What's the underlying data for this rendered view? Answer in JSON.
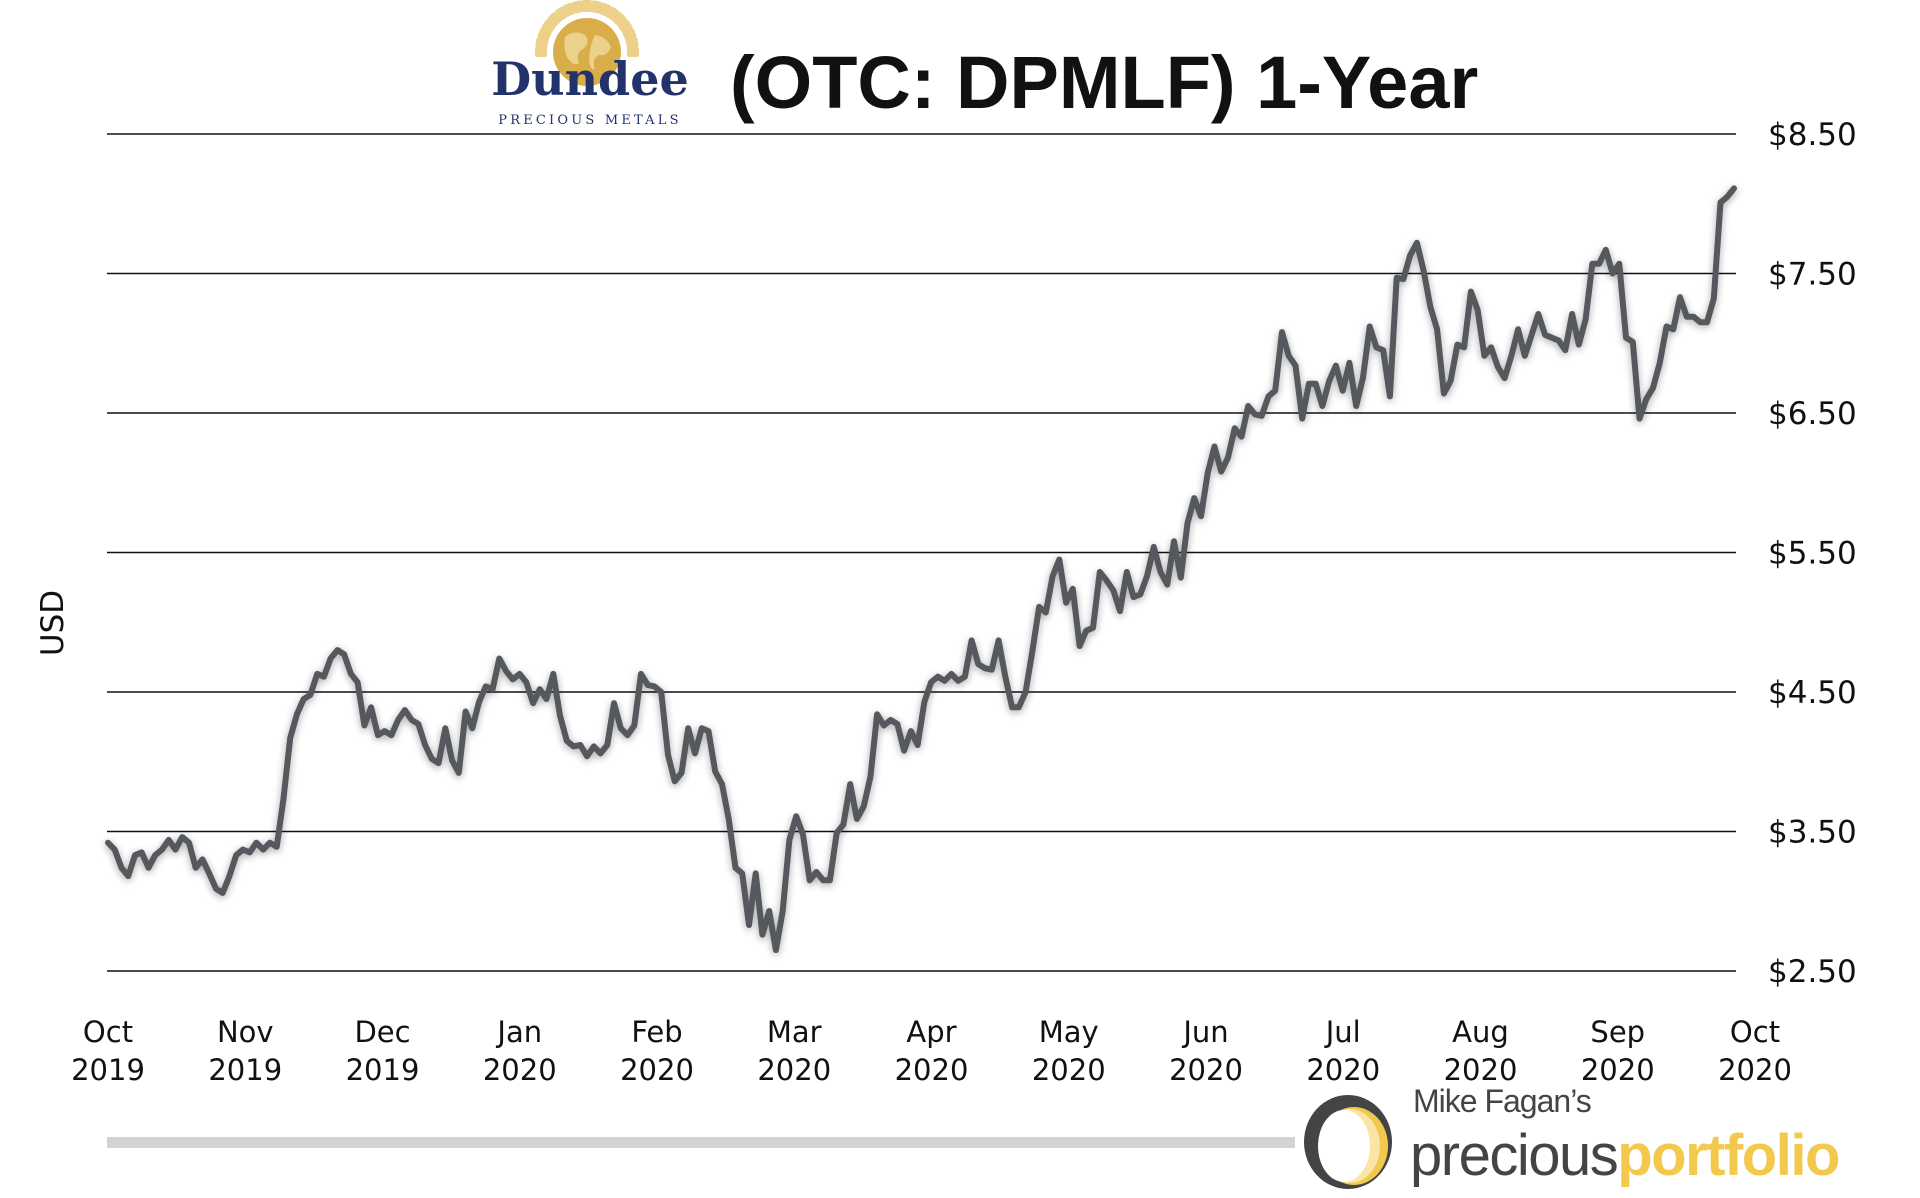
{
  "header": {
    "logo_text": "Dundee",
    "logo_subtext": "PRECIOUS METALS",
    "title": "(OTC: DPMLF) 1-Year"
  },
  "footer": {
    "brand_top": "Mike Fagan’s",
    "brand_word1": "precious",
    "brand_word2": "portfolio"
  },
  "colors": {
    "line": "#55595d",
    "logo_navy": "#22336b",
    "logo_gold": "#e2bf62",
    "brand_gold": "#f2c94c",
    "brand_gray": "#444446",
    "bar_gray": "#d3d3d3"
  },
  "chart_data": {
    "type": "line",
    "title": "(OTC: DPMLF) 1-Year",
    "ylabel": "USD",
    "xlabel": "",
    "x_range": [
      "2019-10-01",
      "2020-10-01"
    ],
    "ylim": [
      2.5,
      8.5
    ],
    "grid": "horizontal",
    "y_ticks": [
      "$8.50",
      "$7.50",
      "$6.50",
      "$5.50",
      "$4.50",
      "$3.50",
      "$2.50"
    ],
    "y_tick_values": [
      8.5,
      7.5,
      6.5,
      5.5,
      4.5,
      3.5,
      2.5
    ],
    "x_ticks": [
      {
        "month": "Oct",
        "year": "2019"
      },
      {
        "month": "Nov",
        "year": "2019"
      },
      {
        "month": "Dec",
        "year": "2019"
      },
      {
        "month": "Jan",
        "year": "2020"
      },
      {
        "month": "Feb",
        "year": "2020"
      },
      {
        "month": "Mar",
        "year": "2020"
      },
      {
        "month": "Apr",
        "year": "2020"
      },
      {
        "month": "May",
        "year": "2020"
      },
      {
        "month": "Jun",
        "year": "2020"
      },
      {
        "month": "Jul",
        "year": "2020"
      },
      {
        "month": "Aug",
        "year": "2020"
      },
      {
        "month": "Sep",
        "year": "2020"
      },
      {
        "month": "Oct",
        "year": "2020"
      }
    ],
    "series": [
      {
        "values": [
          3.42,
          3.37,
          3.24,
          3.18,
          3.33,
          3.35,
          3.24,
          3.33,
          3.37,
          3.44,
          3.37,
          3.46,
          3.42,
          3.24,
          3.3,
          3.2,
          3.09,
          3.06,
          3.18,
          3.33,
          3.37,
          3.35,
          3.42,
          3.37,
          3.42,
          3.39,
          3.73,
          4.17,
          4.34,
          4.45,
          4.48,
          4.63,
          4.61,
          4.74,
          4.8,
          4.77,
          4.63,
          4.57,
          4.26,
          4.39,
          4.19,
          4.22,
          4.19,
          4.3,
          4.37,
          4.3,
          4.27,
          4.12,
          4.02,
          3.99,
          4.24,
          4.01,
          3.92,
          4.36,
          4.24,
          4.43,
          4.54,
          4.52,
          4.74,
          4.65,
          4.59,
          4.63,
          4.57,
          4.42,
          4.52,
          4.45,
          4.63,
          4.33,
          4.15,
          4.11,
          4.12,
          4.04,
          4.11,
          4.06,
          4.12,
          4.42,
          4.24,
          4.19,
          4.26,
          4.63,
          4.55,
          4.54,
          4.5,
          4.05,
          3.86,
          3.92,
          4.24,
          4.06,
          4.24,
          4.22,
          3.93,
          3.84,
          3.59,
          3.24,
          3.2,
          2.83,
          3.2,
          2.76,
          2.93,
          2.65,
          2.93,
          3.44,
          3.61,
          3.48,
          3.15,
          3.21,
          3.15,
          3.15,
          3.49,
          3.55,
          3.84,
          3.59,
          3.68,
          3.89,
          4.34,
          4.26,
          4.3,
          4.27,
          4.08,
          4.22,
          4.12,
          4.43,
          4.57,
          4.61,
          4.58,
          4.63,
          4.58,
          4.61,
          4.87,
          4.7,
          4.67,
          4.66,
          4.87,
          4.61,
          4.39,
          4.39,
          4.5,
          4.79,
          5.11,
          5.07,
          5.33,
          5.45,
          5.14,
          5.24,
          4.83,
          4.94,
          4.96,
          5.36,
          5.3,
          5.23,
          5.08,
          5.36,
          5.18,
          5.2,
          5.33,
          5.54,
          5.36,
          5.27,
          5.58,
          5.32,
          5.71,
          5.89,
          5.76,
          6.07,
          6.26,
          6.08,
          6.18,
          6.39,
          6.33,
          6.55,
          6.49,
          6.48,
          6.62,
          6.66,
          7.08,
          6.91,
          6.84,
          6.46,
          6.71,
          6.71,
          6.55,
          6.73,
          6.84,
          6.66,
          6.86,
          6.55,
          6.75,
          7.12,
          6.97,
          6.95,
          6.62,
          7.47,
          7.46,
          7.63,
          7.72,
          7.52,
          7.26,
          7.1,
          6.64,
          6.73,
          6.99,
          6.97,
          7.37,
          7.24,
          6.91,
          6.97,
          6.83,
          6.75,
          6.91,
          7.1,
          6.91,
          7.06,
          7.21,
          7.06,
          7.04,
          7.02,
          6.95,
          7.21,
          6.99,
          7.17,
          7.57,
          7.57,
          7.67,
          7.5,
          7.57,
          7.04,
          7.01,
          6.46,
          6.6,
          6.68,
          6.86,
          7.12,
          7.1,
          7.33,
          7.19,
          7.19,
          7.15,
          7.15,
          7.32,
          8.01,
          8.05,
          8.11
        ]
      }
    ]
  }
}
